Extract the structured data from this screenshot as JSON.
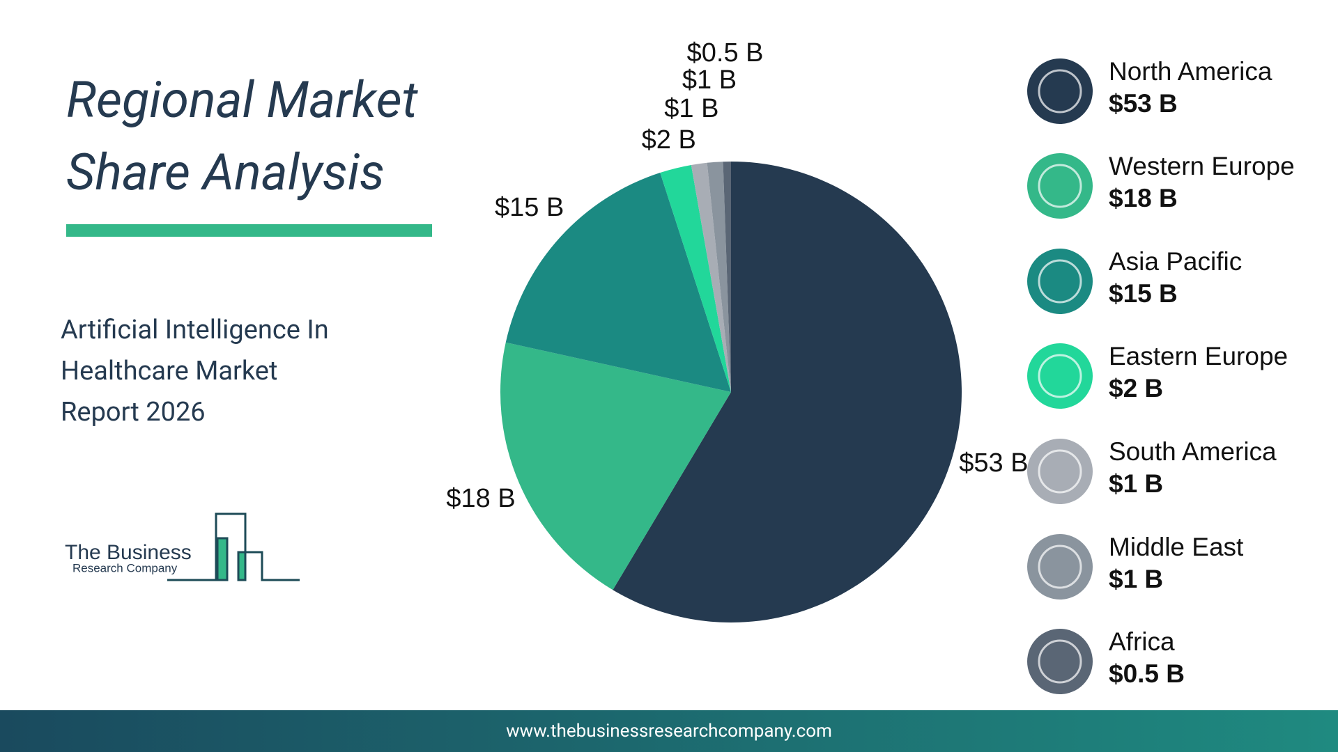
{
  "chart_data": {
    "type": "pie",
    "title": "Regional Market Share Analysis",
    "subtitle": "Artificial Intelligence In Healthcare Market Report 2026",
    "categories": [
      "North America",
      "Western Europe",
      "Asia Pacific",
      "Eastern Europe",
      "South America",
      "Middle East",
      "Africa"
    ],
    "values": [
      53,
      18,
      15,
      2,
      1,
      1,
      0.5
    ],
    "value_labels": [
      "$53 B",
      "$18 B",
      "$15 B",
      "$2 B",
      "$1 B",
      "$1 B",
      "$0.5 B"
    ],
    "colors": [
      "#253a50",
      "#34b889",
      "#1b8a82",
      "#22d79a",
      "#a8adb5",
      "#8a949e",
      "#5a6675"
    ],
    "legend": "right"
  },
  "logo": {
    "line1": "The Business",
    "line2": "Research Company"
  },
  "footer": {
    "url": "www.thebusinessresearchcompany.com"
  }
}
